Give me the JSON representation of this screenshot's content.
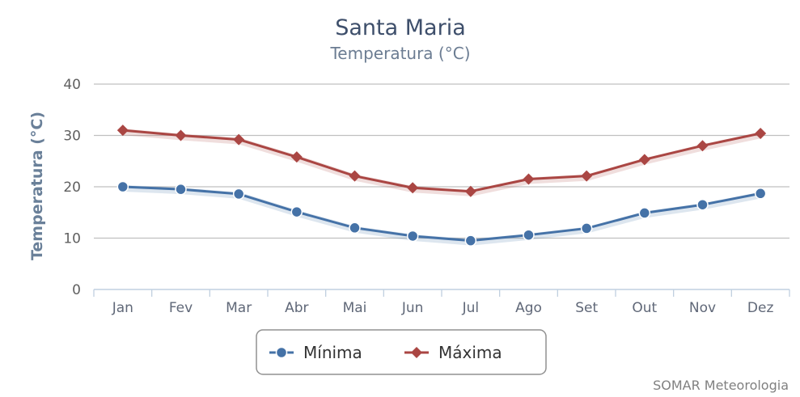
{
  "chart_data": {
    "type": "line",
    "title": "Santa Maria",
    "subtitle": "Temperatura (°C)",
    "ylabel": "Temperatura (°C)",
    "xlabel": "",
    "ylim": [
      0,
      40
    ],
    "yticks": [
      0,
      10,
      20,
      30,
      40
    ],
    "grid": true,
    "legend_position": "bottom-center",
    "categories": [
      "Jan",
      "Fev",
      "Mar",
      "Abr",
      "Mai",
      "Jun",
      "Jul",
      "Ago",
      "Set",
      "Out",
      "Nov",
      "Dez"
    ],
    "series": [
      {
        "name": "Mínima",
        "marker": "circle",
        "color": "#4572a7",
        "values": [
          20.0,
          19.5,
          18.6,
          15.1,
          12.0,
          10.4,
          9.5,
          10.6,
          11.9,
          14.9,
          16.5,
          18.7
        ]
      },
      {
        "name": "Máxima",
        "marker": "diamond",
        "color": "#aa4643",
        "values": [
          31.0,
          30.0,
          29.2,
          25.8,
          22.1,
          19.8,
          19.1,
          21.5,
          22.1,
          25.3,
          28.0,
          30.4
        ]
      }
    ],
    "credit": "SOMAR Meteorologia"
  }
}
